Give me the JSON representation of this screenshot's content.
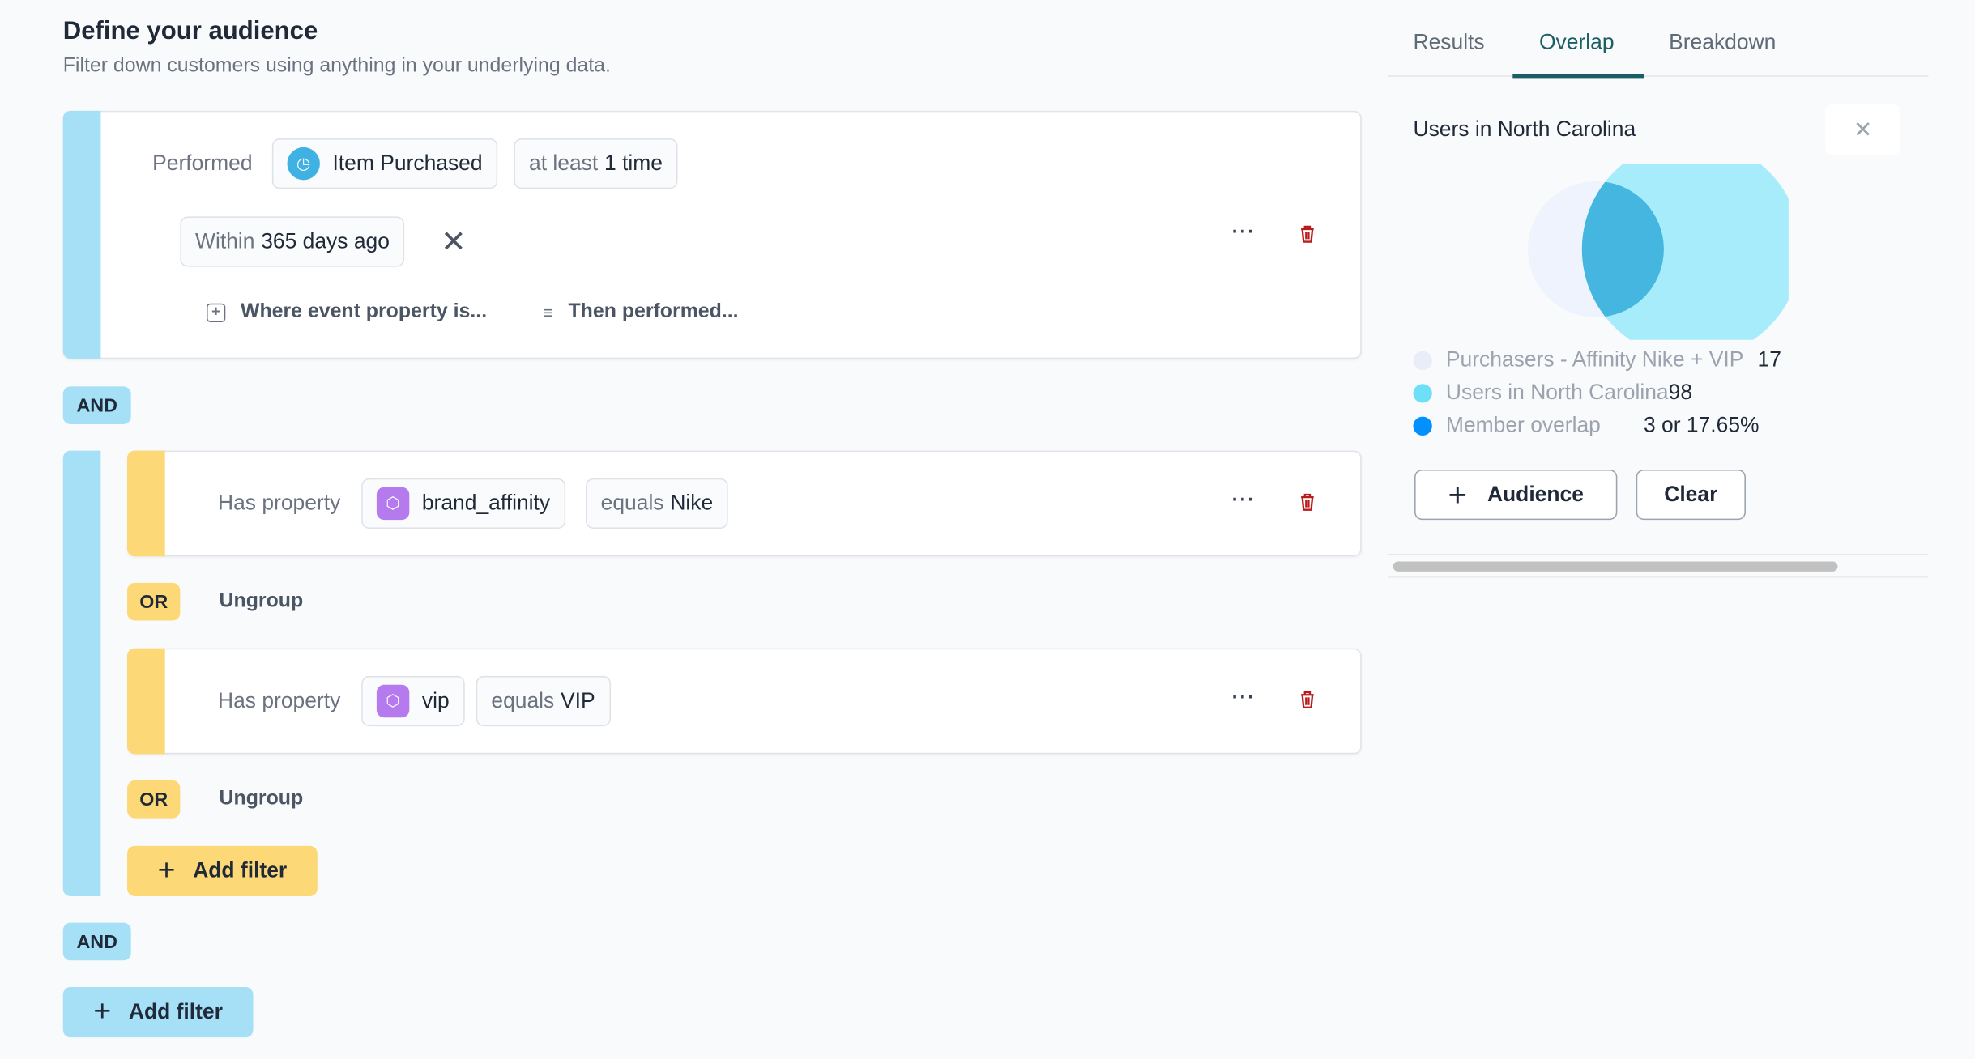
{
  "header": {
    "title": "Define your audience",
    "subtitle": "Filter down customers using anything in your underlying data."
  },
  "filter1": {
    "performed_label": "Performed",
    "event": "Item Purchased",
    "event_icon": "clock-icon",
    "freq_prefix": "at least",
    "freq_value": "1 time",
    "within_prefix": "Within",
    "within_value": "365 days ago",
    "where_link": "Where event property is...",
    "then_link": "Then performed..."
  },
  "and_label": "AND",
  "group": {
    "filters": [
      {
        "label": "Has property",
        "property": "brand_affinity",
        "op": "equals",
        "value": "Nike",
        "icon": "cube-icon"
      },
      {
        "label": "Has property",
        "property": "vip",
        "op": "equals",
        "value": "VIP",
        "icon": "cube-icon"
      }
    ],
    "or_label": "OR",
    "ungroup_label": "Ungroup",
    "add_filter_label": "Add filter"
  },
  "add_filter_label": "Add filter",
  "more_label": "···",
  "colors": {
    "blue_bar": "#a5e0f7",
    "yellow_bar": "#fdd877",
    "trash": "#b91c1c",
    "tab_active": "#1b5e63"
  },
  "panel": {
    "tabs": [
      {
        "label": "Results"
      },
      {
        "label": "Overlap",
        "active": true
      },
      {
        "label": "Breakdown"
      }
    ],
    "title": "Users in North Carolina",
    "legend": [
      {
        "label": "Purchasers - Affinity Nike + VIP",
        "value": "17",
        "color": "#e8edf7"
      },
      {
        "label": "Users in North Carolina",
        "value": "98",
        "color": "#6ddff7"
      },
      {
        "label": "Member overlap",
        "value": "3 or 17.65%",
        "color": "#0090ff"
      }
    ],
    "audience_button": "Audience",
    "clear_button": "Clear"
  }
}
